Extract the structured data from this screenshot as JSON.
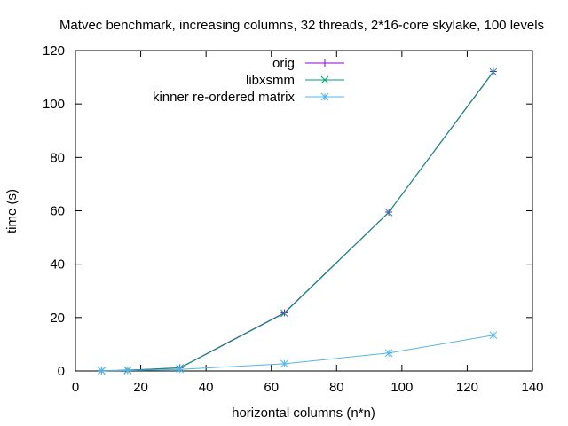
{
  "chart_data": {
    "type": "line",
    "title": "Matvec benchmark, increasing columns, 32 threads, 2*16-core skylake, 100 levels",
    "xlabel": "horizontal columns (n*n)",
    "ylabel": "time (s)",
    "xlim": [
      0,
      140
    ],
    "ylim": [
      0,
      120
    ],
    "xticks": [
      0,
      20,
      40,
      60,
      80,
      100,
      120,
      140
    ],
    "yticks": [
      0,
      20,
      40,
      60,
      80,
      100,
      120
    ],
    "grid": false,
    "legend_position": "top-right",
    "x": [
      8,
      16,
      32,
      64,
      96,
      128
    ],
    "series": [
      {
        "name": "orig",
        "color": "#9400d3",
        "marker": "plus",
        "values": [
          0.1,
          0.3,
          1.2,
          21.8,
          59.5,
          112.2
        ]
      },
      {
        "name": "libxsmm",
        "color": "#009e73",
        "marker": "cross",
        "values": [
          0.1,
          0.3,
          1.1,
          21.6,
          59.4,
          112.0
        ]
      },
      {
        "name": "kinner re-ordered matrix",
        "color": "#56b4e9",
        "marker": "star",
        "values": [
          0.05,
          0.15,
          0.6,
          2.7,
          6.7,
          13.4
        ]
      }
    ]
  }
}
